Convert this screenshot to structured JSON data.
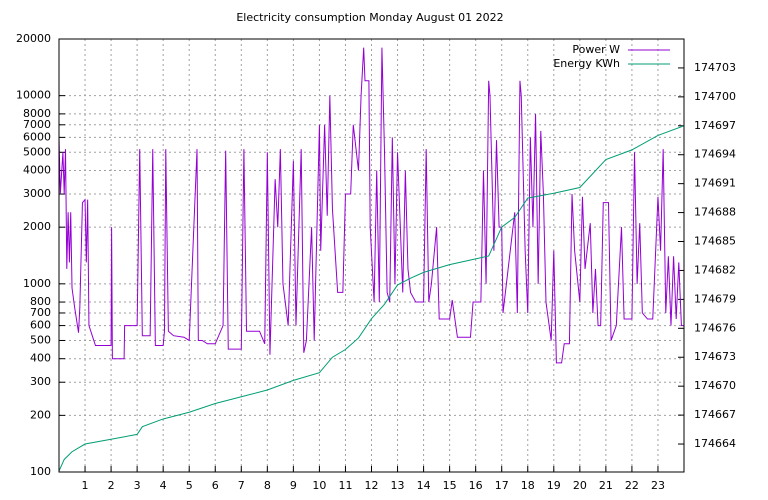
{
  "chart_data": {
    "type": "line",
    "title": "Electricity consumption Monday August 01 2022",
    "log_y": true,
    "grid": true,
    "legend": "top-right",
    "xlim": [
      0,
      24
    ],
    "xticks": [
      1,
      2,
      3,
      4,
      5,
      6,
      7,
      8,
      9,
      10,
      11,
      12,
      13,
      14,
      15,
      16,
      17,
      18,
      19,
      20,
      21,
      22,
      23
    ],
    "ylim": [
      100,
      20000
    ],
    "yticks": [
      100,
      200,
      300,
      400,
      500,
      600,
      700,
      800,
      1000,
      2000,
      3000,
      4000,
      5000,
      6000,
      7000,
      8000,
      10000,
      20000
    ],
    "y2lim": [
      174661.1,
      174706
    ],
    "y2ticks": [
      174664,
      174667,
      174670,
      174673,
      174676,
      174679,
      174682,
      174685,
      174688,
      174691,
      174694,
      174697,
      174700,
      174703
    ],
    "series": [
      {
        "name": "Power W",
        "color": "#9400d3",
        "x": [
          0,
          0.05,
          0.15,
          0.2,
          0.25,
          0.3,
          0.35,
          0.4,
          0.45,
          0.5,
          0.6,
          0.75,
          0.8,
          0.9,
          1.0,
          1.05,
          1.1,
          1.15,
          1.4,
          2.0,
          2.02,
          2.05,
          2.5,
          2.52,
          3.0,
          3.1,
          3.2,
          3.5,
          3.6,
          3.7,
          4.0,
          4.05,
          4.1,
          4.2,
          4.4,
          4.8,
          5.0,
          5.3,
          5.35,
          5.5,
          5.7,
          6.0,
          6.3,
          6.4,
          6.5,
          7.0,
          7.1,
          7.2,
          7.7,
          7.9,
          8.0,
          8.1,
          8.3,
          8.4,
          8.5,
          8.6,
          8.8,
          9.0,
          9.1,
          9.3,
          9.4,
          9.5,
          9.7,
          9.8,
          10.0,
          10.05,
          10.2,
          10.3,
          10.4,
          10.5,
          10.7,
          10.9,
          11.0,
          11.2,
          11.3,
          11.5,
          11.6,
          11.7,
          11.75,
          11.9,
          11.95,
          12.1,
          12.2,
          12.3,
          12.4,
          12.5,
          12.6,
          12.7,
          12.8,
          12.9,
          13.0,
          13.2,
          13.3,
          13.4,
          13.5,
          13.7,
          13.9,
          14.0,
          14.1,
          14.2,
          14.3,
          14.5,
          14.6,
          15.0,
          15.1,
          15.3,
          15.8,
          15.9,
          16.2,
          16.3,
          16.4,
          16.5,
          16.55,
          16.7,
          16.8,
          16.9,
          17.0,
          17.05,
          17.5,
          17.6,
          17.7,
          17.75,
          17.9,
          18.0,
          18.1,
          18.2,
          18.3,
          18.4,
          18.5,
          18.6,
          18.7,
          18.9,
          19.0,
          19.1,
          19.3,
          19.4,
          19.6,
          19.7,
          19.8,
          20.0,
          20.1,
          20.2,
          20.4,
          20.5,
          20.6,
          20.7,
          20.8,
          20.9,
          21.1,
          21.2,
          21.4,
          21.6,
          21.7,
          22.0,
          22.1,
          22.2,
          22.3,
          22.4,
          22.6,
          22.8,
          23.0,
          23.1,
          23.2,
          23.3,
          23.4,
          23.5,
          23.6,
          23.7,
          23.8,
          23.9,
          24
        ],
        "values": [
          6000,
          3000,
          5000,
          3000,
          5200,
          1200,
          2400,
          1300,
          2400,
          950,
          750,
          550,
          750,
          2700,
          2800,
          1300,
          2800,
          600,
          470,
          470,
          2000,
          400,
          400,
          600,
          600,
          5200,
          530,
          530,
          5200,
          470,
          470,
          560,
          5200,
          560,
          530,
          520,
          500,
          5200,
          500,
          500,
          480,
          480,
          600,
          5100,
          450,
          450,
          5200,
          560,
          560,
          480,
          5000,
          420,
          3600,
          2000,
          5200,
          1000,
          600,
          4500,
          600,
          5200,
          430,
          500,
          2000,
          500,
          7000,
          1500,
          7000,
          2300,
          10000,
          2500,
          900,
          900,
          3000,
          3000,
          7000,
          4000,
          10000,
          18000,
          12000,
          12000,
          2000,
          800,
          4000,
          800,
          18000,
          5000,
          900,
          800,
          6000,
          1000,
          5000,
          900,
          4000,
          1200,
          900,
          800,
          800,
          800,
          5200,
          800,
          1000,
          2000,
          650,
          650,
          820,
          520,
          520,
          800,
          800,
          4000,
          1000,
          12000,
          10000,
          1500,
          5800,
          2000,
          2000,
          700,
          2400,
          700,
          12000,
          10000,
          1500,
          700,
          6000,
          2000,
          8000,
          1000,
          6500,
          3000,
          800,
          500,
          1500,
          380,
          380,
          480,
          480,
          3000,
          1500,
          800,
          2900,
          1200,
          2100,
          700,
          1200,
          600,
          600,
          2700,
          2700,
          500,
          600,
          2000,
          650,
          650,
          5000,
          1000,
          2100,
          700,
          650,
          650,
          2900,
          1500,
          5200,
          700,
          1400,
          600,
          1400,
          650,
          1300,
          600,
          600
        ]
      },
      {
        "name": "Energy KWh",
        "color": "#009e73",
        "axis": "y2",
        "x": [
          0,
          0.2,
          0.5,
          1,
          2,
          3,
          3.2,
          4,
          5,
          6,
          7,
          8,
          9,
          10,
          10.5,
          11,
          11.5,
          12,
          12.5,
          13,
          13.5,
          14,
          15,
          16,
          16.5,
          17,
          17.5,
          18,
          19,
          20,
          21,
          22,
          23,
          24
        ],
        "values": [
          174661.2,
          174662.4,
          174663.2,
          174664,
          174664.5,
          174665,
          174665.8,
          174666.6,
          174667.3,
          174668.2,
          174668.9,
          174669.6,
          174670.6,
          174671.4,
          174673,
          174673.8,
          174675,
          174677,
          174678.5,
          174680.5,
          174681.2,
          174681.8,
          174682.6,
          174683.2,
          174683.5,
          174686.5,
          174687.5,
          174689.5,
          174690,
          174690.6,
          174693.5,
          174694.5,
          174696,
          174697
        ]
      }
    ]
  }
}
